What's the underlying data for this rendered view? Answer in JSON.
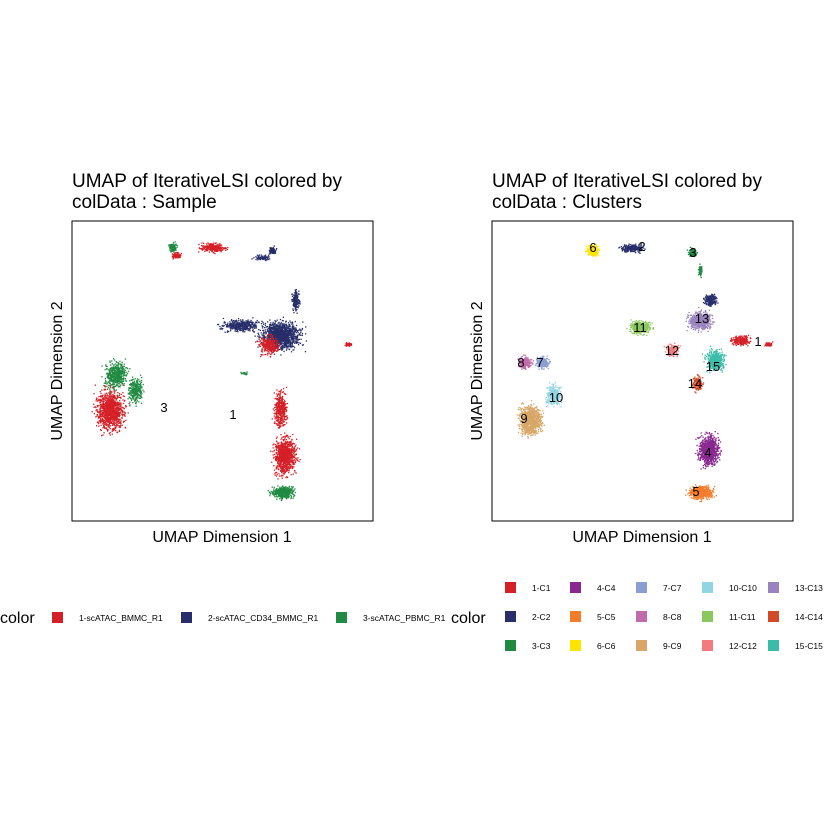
{
  "chart_data": [
    {
      "type": "scatter",
      "title_line1": "UMAP of IterativeLSI  colored by",
      "title_line2": "colData :  Sample",
      "xlabel": "UMAP Dimension 1",
      "ylabel": "UMAP Dimension 2",
      "grid": false,
      "legend_title": "color",
      "legend_placement": "bottom",
      "series": [
        {
          "name": "1-scATAC_BMMC_R1",
          "color": "#D51F26"
        },
        {
          "name": "2-scATAC_CD34_BMMC_R1",
          "color": "#272E6A"
        },
        {
          "name": "3-scATAC_PBMC_R1",
          "color": "#208A42"
        }
      ],
      "annotations": [
        "3",
        "1"
      ]
    },
    {
      "type": "scatter",
      "title_line1": "UMAP of IterativeLSI  colored by",
      "title_line2": "colData :  Clusters",
      "xlabel": "UMAP Dimension 1",
      "ylabel": "UMAP Dimension 2",
      "grid": false,
      "legend_title": "color",
      "legend_placement": "bottom",
      "series": [
        {
          "name": "1-C1",
          "color": "#D51F26"
        },
        {
          "name": "2-C2",
          "color": "#272E6A"
        },
        {
          "name": "3-C3",
          "color": "#208A42"
        },
        {
          "name": "4-C4",
          "color": "#89288F"
        },
        {
          "name": "5-C5",
          "color": "#F47D2B"
        },
        {
          "name": "6-C6",
          "color": "#FEE500"
        },
        {
          "name": "7-C7",
          "color": "#8A9FD1"
        },
        {
          "name": "8-C8",
          "color": "#C06CAB"
        },
        {
          "name": "9-C9",
          "color": "#D8A767"
        },
        {
          "name": "10-C10",
          "color": "#90D5E4"
        },
        {
          "name": "11-C11",
          "color": "#89C75F"
        },
        {
          "name": "12-C12",
          "color": "#F37B7D"
        },
        {
          "name": "13-C13",
          "color": "#9983BD"
        },
        {
          "name": "14-C14",
          "color": "#D24B27"
        },
        {
          "name": "15-C15",
          "color": "#3BBCA8"
        }
      ],
      "annotations": [
        "6",
        "2",
        "3",
        "11",
        "13",
        "12",
        "1",
        "8",
        "7",
        "15",
        "14",
        "10",
        "9",
        "4",
        "5"
      ]
    }
  ]
}
